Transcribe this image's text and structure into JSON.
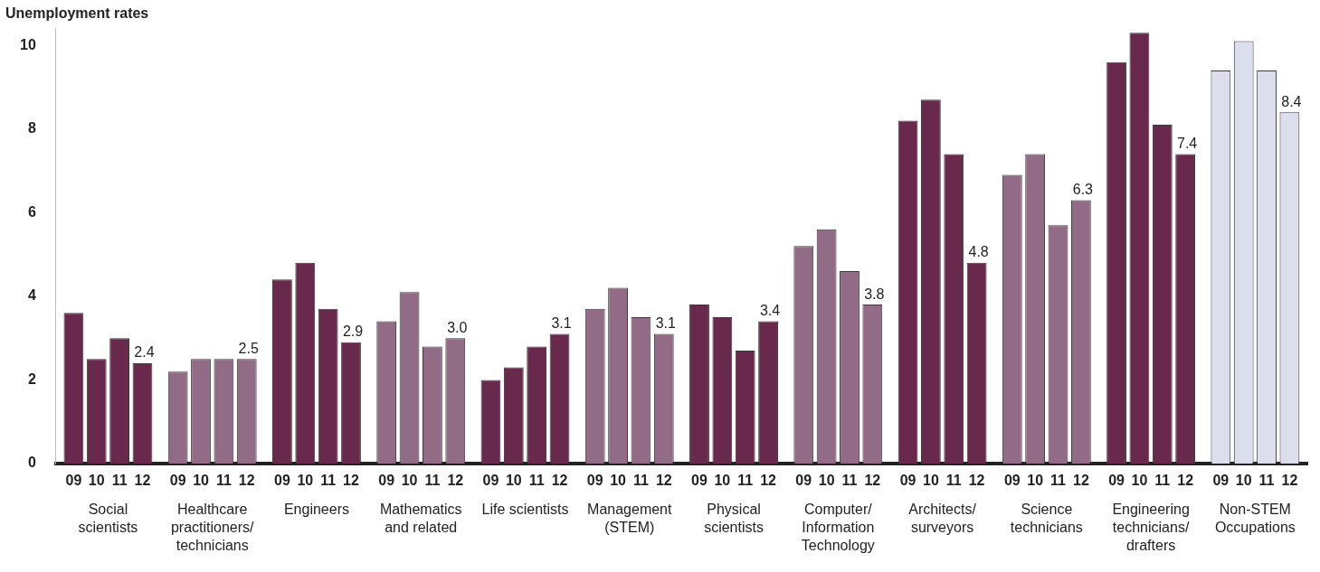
{
  "chart_data": {
    "type": "bar",
    "ylabel": "Unemployment rates",
    "categories": [
      "Social scientists",
      "Healthcare practitioners/ technicians",
      "Engineers",
      "Mathematics and related",
      "Life scientists",
      "Management (STEM)",
      "Physical scientists",
      "Computer/ Information Technology",
      "Architects/ surveyors",
      "Science technicians",
      "Engineering technicians/ drafters",
      "Non-STEM Occupations"
    ],
    "series": [
      {
        "name": "09",
        "colors": [
          "#69294d",
          "#926c86",
          "#69294d",
          "#926c86",
          "#69294d",
          "#926c86",
          "#69294d",
          "#926c86",
          "#69294d",
          "#926c86",
          "#69294d",
          "#dcdded"
        ],
        "values": [
          3.6,
          2.2,
          4.4,
          3.4,
          2.0,
          3.7,
          3.8,
          5.2,
          8.2,
          6.9,
          9.6,
          9.4
        ]
      },
      {
        "name": "10",
        "colors": [
          "#69294d",
          "#926c86",
          "#69294d",
          "#926c86",
          "#69294d",
          "#926c86",
          "#69294d",
          "#926c86",
          "#69294d",
          "#926c86",
          "#69294d",
          "#dcdded"
        ],
        "values": [
          2.5,
          2.5,
          4.8,
          4.1,
          2.3,
          4.2,
          3.5,
          5.6,
          8.7,
          7.4,
          10.3,
          10.1
        ]
      },
      {
        "name": "11",
        "colors": [
          "#69294d",
          "#926c86",
          "#69294d",
          "#926c86",
          "#69294d",
          "#926c86",
          "#69294d",
          "#926c86",
          "#69294d",
          "#926c86",
          "#69294d",
          "#dcdded"
        ],
        "values": [
          3.0,
          2.5,
          3.7,
          2.8,
          2.8,
          3.5,
          2.7,
          4.6,
          7.4,
          5.7,
          8.1,
          9.4
        ]
      },
      {
        "name": "12",
        "colors": [
          "#69294d",
          "#926c86",
          "#69294d",
          "#926c86",
          "#69294d",
          "#926c86",
          "#69294d",
          "#926c86",
          "#69294d",
          "#926c86",
          "#69294d",
          "#dcdded"
        ],
        "values": [
          2.4,
          2.5,
          2.9,
          3.0,
          3.1,
          3.1,
          3.4,
          3.8,
          4.8,
          6.3,
          7.4,
          8.4
        ],
        "value_labels": [
          "2.4",
          "2.5",
          "2.9",
          "3.0",
          "3.1",
          "3.1",
          "3.4",
          "3.8",
          "4.8",
          "6.3",
          "7.4",
          "8.4"
        ]
      }
    ],
    "ylim": [
      0,
      10.4
    ],
    "yticks": [
      0,
      2,
      4,
      6,
      8,
      10
    ]
  }
}
